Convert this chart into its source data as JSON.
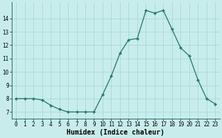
{
  "x": [
    0,
    1,
    2,
    3,
    4,
    5,
    6,
    7,
    8,
    9,
    10,
    11,
    12,
    13,
    14,
    15,
    16,
    17,
    18,
    19,
    20,
    21,
    22,
    23
  ],
  "y": [
    8.0,
    8.0,
    8.0,
    7.9,
    7.5,
    7.2,
    7.0,
    7.0,
    7.0,
    7.0,
    8.3,
    9.7,
    11.4,
    12.4,
    12.5,
    14.6,
    14.4,
    14.6,
    13.2,
    11.8,
    11.2,
    9.4,
    8.0,
    7.6
  ],
  "line_color": "#2e7d6e",
  "marker": "D",
  "marker_size": 2.0,
  "bg_color": "#c8ecec",
  "grid_color": "#a8d8d8",
  "xlabel": "Humidex (Indice chaleur)",
  "xlim": [
    -0.5,
    23.5
  ],
  "ylim": [
    6.5,
    15.2
  ],
  "yticks": [
    7,
    8,
    9,
    10,
    11,
    12,
    13,
    14
  ],
  "xticks": [
    0,
    1,
    2,
    3,
    4,
    5,
    6,
    7,
    8,
    9,
    10,
    11,
    12,
    13,
    14,
    15,
    16,
    17,
    18,
    19,
    20,
    21,
    22,
    23
  ],
  "tick_fontsize": 5.5,
  "xlabel_fontsize": 7.0,
  "line_width": 1.0
}
